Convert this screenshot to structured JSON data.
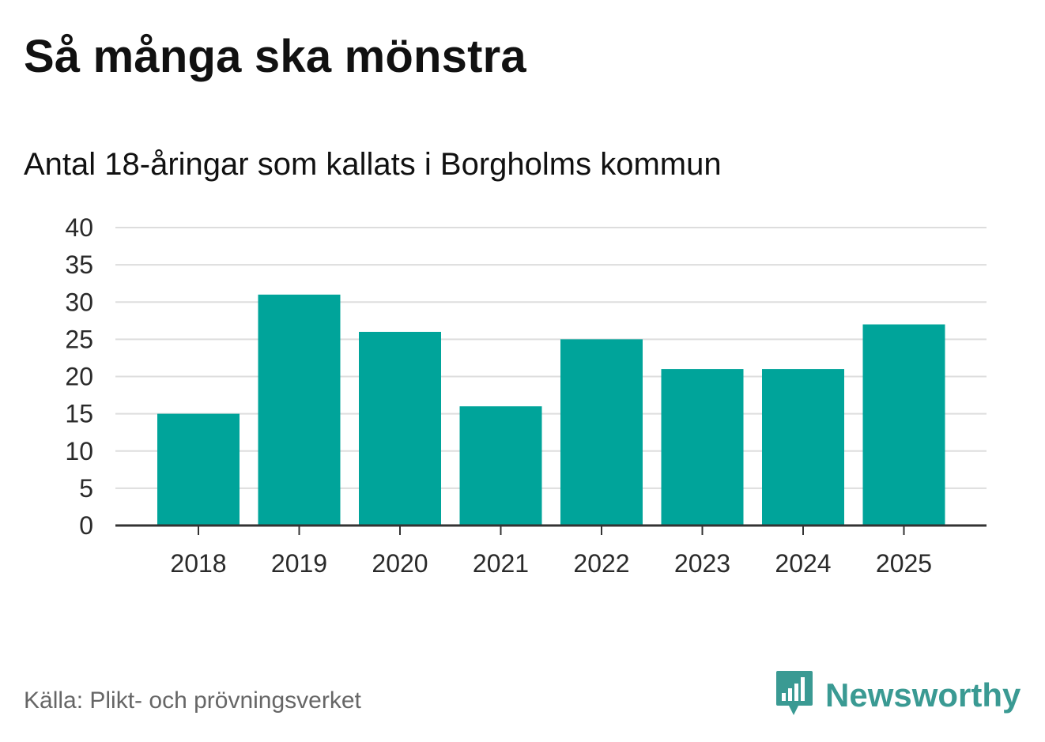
{
  "header": {
    "title": "Så många ska mönstra",
    "subtitle": "Antal 18-åringar som kallats i Borgholms kommun"
  },
  "footer": {
    "source": "Källa: Plikt- och prövningsverket",
    "brand": "Newsworthy",
    "brand_icon": "bar-chart-speech-bubble-icon"
  },
  "colors": {
    "bar": "#00a49a",
    "grid": "#dddddd",
    "axis": "#333333",
    "brand": "#3a9a93"
  },
  "chart_data": {
    "type": "bar",
    "title": "Så många ska mönstra",
    "subtitle": "Antal 18-åringar som kallats i Borgholms kommun",
    "categories": [
      "2018",
      "2019",
      "2020",
      "2021",
      "2022",
      "2023",
      "2024",
      "2025"
    ],
    "values": [
      15,
      31,
      26,
      16,
      25,
      21,
      21,
      27
    ],
    "ylim": [
      0,
      40
    ],
    "yticks": [
      0,
      5,
      10,
      15,
      20,
      25,
      30,
      35,
      40
    ],
    "grid": true,
    "legend": "none"
  }
}
